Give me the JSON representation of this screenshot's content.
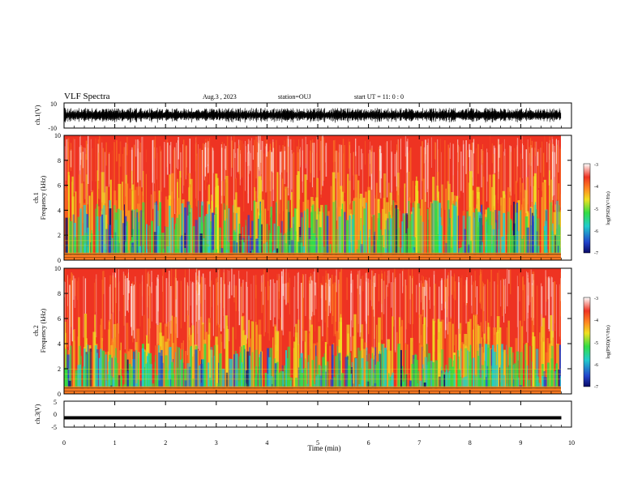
{
  "header": {
    "title": "VLF Spectra",
    "date": "Aug.3 , 2023",
    "station": "station=OUJ",
    "start_ut": "start UT = 11: 0 : 0"
  },
  "chart_data": [
    {
      "type": "line",
      "panel": "ch1-waveform",
      "ylabel": "ch.1(V)",
      "ylim": [
        -10,
        10
      ],
      "y_ticks": [
        "10",
        "-10"
      ],
      "xlim": [
        0,
        10
      ],
      "baseline": 0,
      "approx_amplitude_range": [
        -6,
        6
      ]
    },
    {
      "type": "heatmap",
      "panel": "ch1-spectrogram",
      "ylabel": "ch.1 Frequency (kHz)",
      "ylim": [
        0,
        10
      ],
      "y_ticks": [
        "0",
        "2",
        "4",
        "6",
        "8",
        "10"
      ],
      "xlim": [
        0,
        9.8
      ],
      "colorbar": {
        "label": "log(PSD)(V²/Hz)",
        "range": [
          -7,
          -3
        ],
        "ticks": [
          "-3",
          "-4",
          "-5",
          "-6",
          "-7"
        ]
      },
      "description_bands": [
        {
          "freq_khz": [
            0,
            2
          ],
          "log_psd": -5.0
        },
        {
          "freq_khz": [
            2,
            5
          ],
          "log_psd": -4.6
        },
        {
          "freq_khz": [
            5,
            10
          ],
          "log_psd": -3.9
        }
      ]
    },
    {
      "type": "heatmap",
      "panel": "ch2-spectrogram",
      "ylabel": "ch.2 Frequency (kHz)",
      "ylim": [
        0,
        10
      ],
      "y_ticks": [
        "0",
        "2",
        "4",
        "6",
        "8",
        "10"
      ],
      "xlim": [
        0,
        9.8
      ],
      "colorbar": {
        "label": "log(PSD)(V²/Hz)",
        "range": [
          -7,
          -3
        ],
        "ticks": [
          "-3",
          "-4",
          "-5",
          "-6",
          "-7"
        ]
      },
      "description_bands": [
        {
          "freq_khz": [
            0,
            2
          ],
          "log_psd": -5.0
        },
        {
          "freq_khz": [
            2,
            5
          ],
          "log_psd": -4.6
        },
        {
          "freq_khz": [
            5,
            10
          ],
          "log_psd": -3.9
        }
      ]
    },
    {
      "type": "line",
      "panel": "ch3-waveform",
      "ylabel": "ch.3(V)",
      "ylim": [
        -5,
        5
      ],
      "y_ticks": [
        "5",
        "0",
        "-5"
      ],
      "xlim": [
        0,
        10
      ],
      "constant_value": -1.4
    }
  ],
  "x_axis": {
    "label": "Time (min)",
    "ticks": [
      "0",
      "1",
      "2",
      "3",
      "4",
      "5",
      "6",
      "7",
      "8",
      "9",
      "10"
    ],
    "range": [
      0,
      10
    ]
  },
  "colors": {
    "red": "#ee3322",
    "orange": "#ff8822",
    "yellow": "#f0e020",
    "green": "#33dd44",
    "cyan": "#22cccc",
    "blue": "#2244cc",
    "navy": "#0a0a66",
    "white": "#ffffff",
    "black": "#000000"
  }
}
